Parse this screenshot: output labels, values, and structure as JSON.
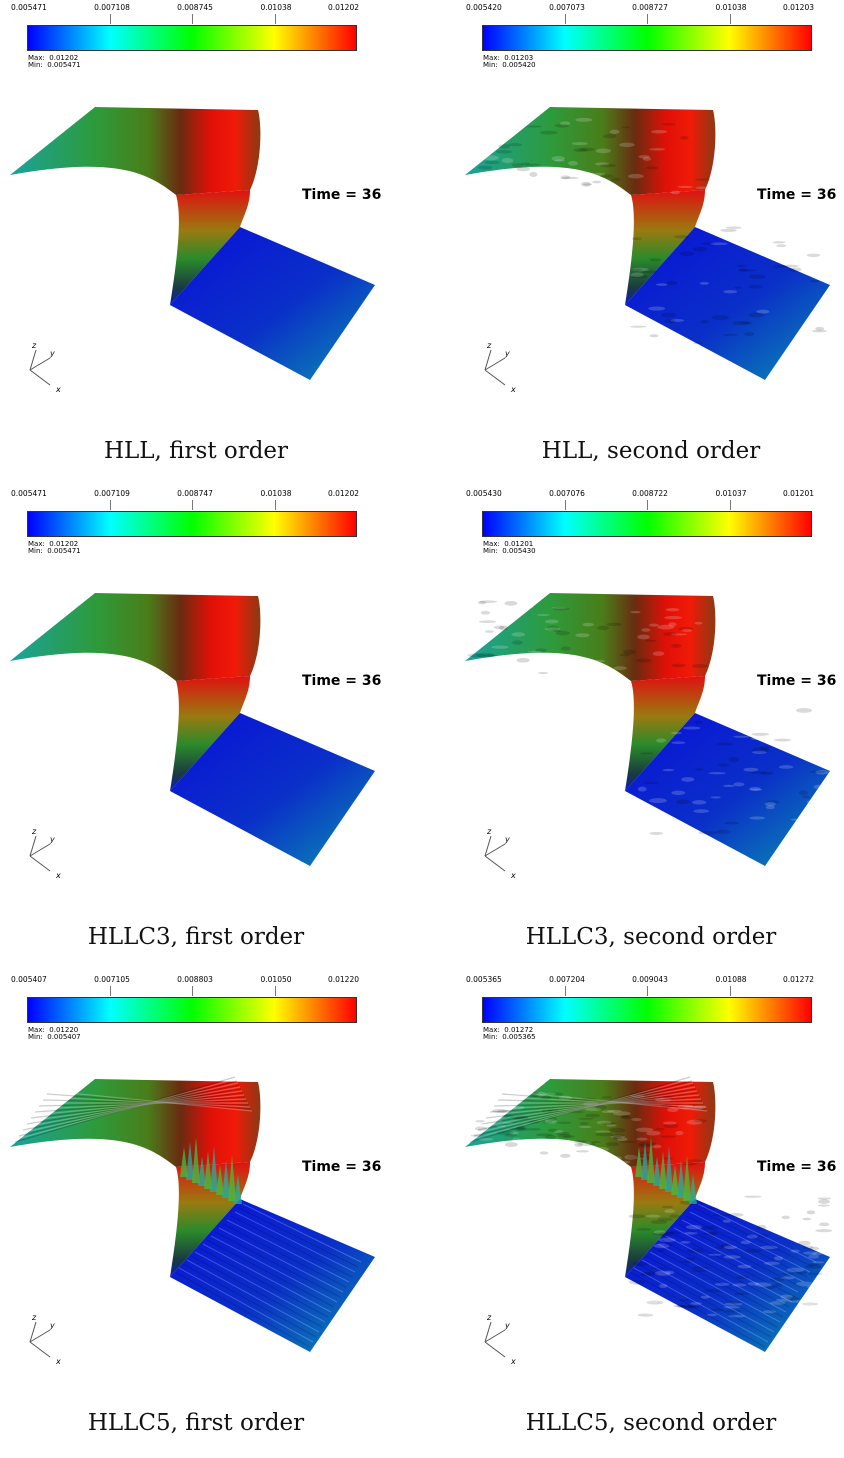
{
  "time_label": "Time = 36",
  "axis_labels": {
    "z": "z",
    "y": "y",
    "x": "x"
  },
  "max_prefix": "Max:",
  "min_prefix": "Min:",
  "colormap": [
    "#0000ff",
    "#00ffff",
    "#00ff00",
    "#ffff00",
    "#ff0000"
  ],
  "panels": [
    {
      "caption": "HLL, first order",
      "ticks": [
        "0.005471",
        "0.007108",
        "0.008745",
        "0.01038",
        "0.01202"
      ],
      "max": "0.01202",
      "min": "0.005471",
      "roughness": "smooth"
    },
    {
      "caption": "HLL, second order",
      "ticks": [
        "0.005420",
        "0.007073",
        "0.008727",
        "0.01038",
        "0.01203"
      ],
      "max": "0.01203",
      "min": "0.005420",
      "roughness": "mild"
    },
    {
      "caption": "HLLC3, first order",
      "ticks": [
        "0.005471",
        "0.007109",
        "0.008747",
        "0.01038",
        "0.01202"
      ],
      "max": "0.01202",
      "min": "0.005471",
      "roughness": "smooth"
    },
    {
      "caption": "HLLC3, second order",
      "ticks": [
        "0.005430",
        "0.007076",
        "0.008722",
        "0.01037",
        "0.01201"
      ],
      "max": "0.01201",
      "min": "0.005430",
      "roughness": "mild"
    },
    {
      "caption": "HLLC5, first order",
      "ticks": [
        "0.005407",
        "0.007105",
        "0.008803",
        "0.01050",
        "0.01220"
      ],
      "max": "0.01220",
      "min": "0.005407",
      "roughness": "striped"
    },
    {
      "caption": "HLLC5, second order",
      "ticks": [
        "0.005365",
        "0.007204",
        "0.009043",
        "0.01088",
        "0.01272"
      ],
      "max": "0.01272",
      "min": "0.005365",
      "roughness": "rough"
    }
  ]
}
